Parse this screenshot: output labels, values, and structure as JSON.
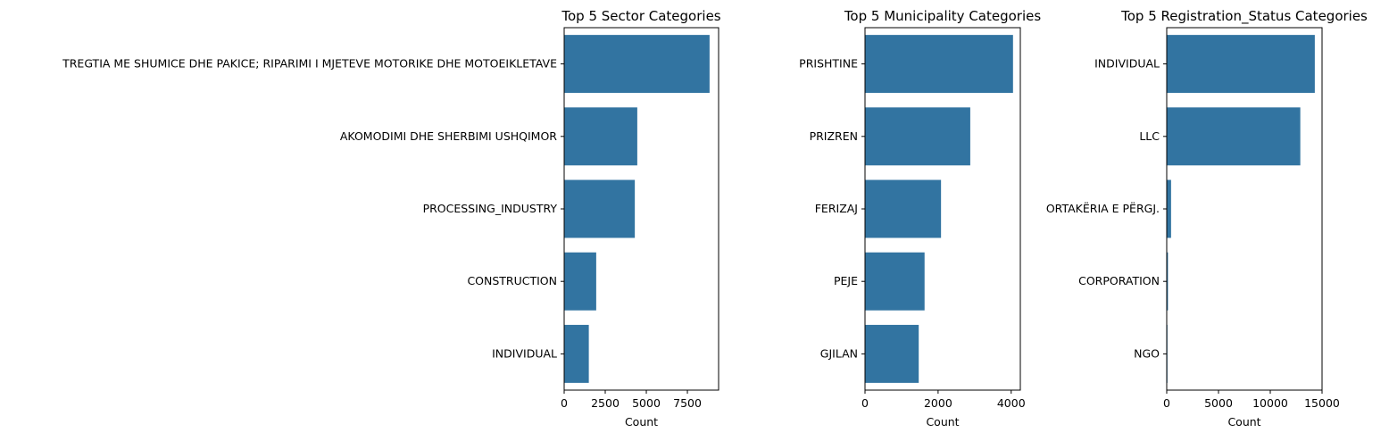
{
  "colors": {
    "bar": "#3274a1",
    "axis": "#000000",
    "background": "#ffffff"
  },
  "chart_data": [
    {
      "type": "bar",
      "orientation": "horizontal",
      "title": "Top 5 Sector Categories",
      "xlabel": "Count",
      "ylabel": "",
      "categories": [
        "TREGTIA ME SHUMICE DHE PAKICE; RIPARIMI I MJETEVE MOTORIKE DHE MOTOEIKLETAVE",
        "AKOMODIMI DHE SHERBIMI USHQIMOR",
        "PROCESSING_INDUSTRY",
        "CONSTRUCTION",
        "INDIVIDUAL"
      ],
      "values": [
        8850,
        4450,
        4300,
        1950,
        1500
      ],
      "xlim": [
        0,
        9400
      ],
      "xticks": [
        0,
        2500,
        5000,
        7500
      ],
      "xtick_labels": [
        "0",
        "2500",
        "5000",
        "7500"
      ],
      "grid": false
    },
    {
      "type": "bar",
      "orientation": "horizontal",
      "title": "Top 5 Municipality Categories",
      "xlabel": "Count",
      "ylabel": "",
      "categories": [
        "PRISHTINE",
        "PRIZREN",
        "FERIZAJ",
        "PEJE",
        "GJILAN"
      ],
      "values": [
        4050,
        2880,
        2080,
        1630,
        1470
      ],
      "xlim": [
        0,
        4250
      ],
      "xticks": [
        0,
        2000,
        4000
      ],
      "xtick_labels": [
        "0",
        "2000",
        "4000"
      ],
      "grid": false
    },
    {
      "type": "bar",
      "orientation": "horizontal",
      "title": "Top 5 Registration_Status Categories",
      "xlabel": "Count",
      "ylabel": "",
      "categories": [
        "INDIVIDUAL",
        "LLC",
        "ORTAKËRIA E PËRGJ.",
        "CORPORATION",
        "NGO"
      ],
      "values": [
        14300,
        12900,
        420,
        120,
        20
      ],
      "xlim": [
        0,
        15000
      ],
      "xticks": [
        0,
        5000,
        10000,
        15000
      ],
      "xtick_labels": [
        "0",
        "5000",
        "10000",
        "15000"
      ],
      "grid": false
    }
  ]
}
